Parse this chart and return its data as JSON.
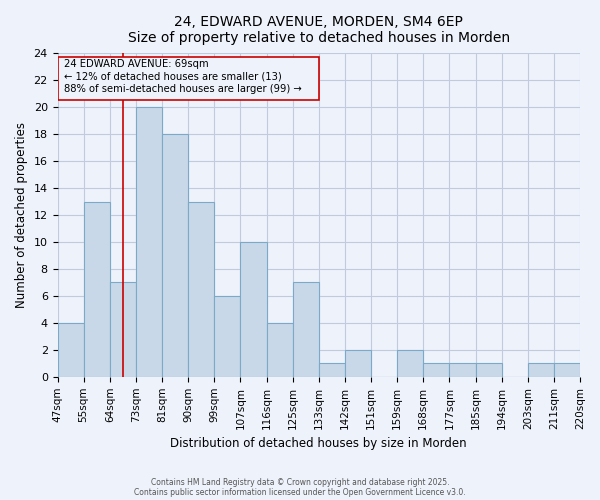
{
  "title": "24, EDWARD AVENUE, MORDEN, SM4 6EP",
  "subtitle": "Size of property relative to detached houses in Morden",
  "xlabel": "Distribution of detached houses by size in Morden",
  "ylabel": "Number of detached properties",
  "tick_labels": [
    "47sqm",
    "55sqm",
    "64sqm",
    "73sqm",
    "81sqm",
    "90sqm",
    "99sqm",
    "107sqm",
    "116sqm",
    "125sqm",
    "133sqm",
    "142sqm",
    "151sqm",
    "159sqm",
    "168sqm",
    "177sqm",
    "185sqm",
    "194sqm",
    "203sqm",
    "211sqm",
    "220sqm"
  ],
  "counts": [
    4,
    13,
    7,
    20,
    18,
    13,
    6,
    10,
    4,
    7,
    1,
    2,
    0,
    2,
    1,
    1,
    1,
    0,
    1,
    1
  ],
  "bar_color": "#c8d8e8",
  "bar_edge_color": "#7aaac8",
  "grid_color": "#c0ccdd",
  "bg_color": "#eef2fb",
  "annotation_box_color": "#cc0000",
  "vline_color": "#cc0000",
  "vline_position": 2.5,
  "annotation_text_line1": "24 EDWARD AVENUE: 69sqm",
  "annotation_text_line2": "← 12% of detached houses are smaller (13)",
  "annotation_text_line3": "88% of semi-detached houses are larger (99) →",
  "ylim": [
    0,
    24
  ],
  "yticks": [
    0,
    2,
    4,
    6,
    8,
    10,
    12,
    14,
    16,
    18,
    20,
    22,
    24
  ],
  "footer1": "Contains HM Land Registry data © Crown copyright and database right 2025.",
  "footer2": "Contains public sector information licensed under the Open Government Licence v3.0."
}
